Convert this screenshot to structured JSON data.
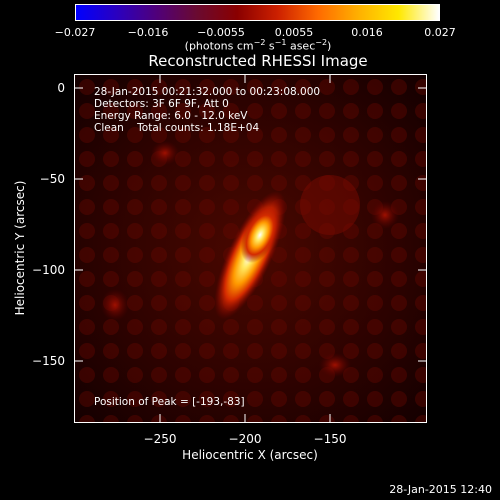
{
  "colorbar": {
    "ticks": [
      "−0.027",
      "−0.016",
      "−0.0055",
      "0.0055",
      "0.016",
      "0.027"
    ],
    "unit_prefix": "(photons cm",
    "unit_exp1": "−2",
    "unit_mid": " s",
    "unit_exp2": "−1",
    "unit_mid2": " asec",
    "unit_exp3": "−2",
    "unit_suffix": ")"
  },
  "title": "Reconstructed RHESSI Image",
  "info": {
    "time_range": "28-Jan-2015 00:21:32.000 to 00:23:08.000",
    "detectors": "Detectors: 3F 6F 9F, Att 0",
    "energy": "Energy Range: 6.0 - 12.0 keV",
    "clean": "Clean    Total counts: 1.18E+04",
    "peak": "Position of Peak = [-193,-83]"
  },
  "axes": {
    "xlabel": "Heliocentric X (arcsec)",
    "ylabel": "Heliocentric Y (arcsec)",
    "xticks": [
      "−250",
      "−200",
      "−150"
    ],
    "yticks": [
      "0",
      "−50",
      "−100",
      "−150"
    ]
  },
  "timestamp": "28-Jan-2015 12:40",
  "colors": {
    "colormap": [
      "#0000ff",
      "#2a00c0",
      "#50007a",
      "#6a0a30",
      "#8a0000",
      "#cc2000",
      "#ff6a00",
      "#ffb000",
      "#ffe800",
      "#ffffff"
    ]
  }
}
